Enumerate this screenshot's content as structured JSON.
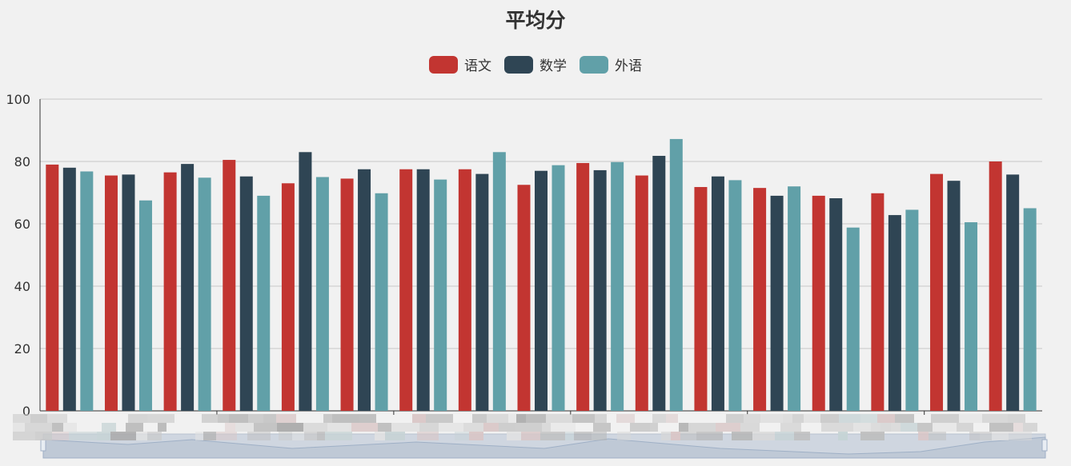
{
  "chart_data": {
    "type": "bar",
    "title": "平均分",
    "xlabel": "",
    "ylabel": "",
    "ylim": [
      0,
      100
    ],
    "yticks": [
      0,
      20,
      40,
      60,
      80,
      100
    ],
    "grid": true,
    "legend_position": "top-center",
    "colors": [
      "#c23531",
      "#2f4554",
      "#61a0a8"
    ],
    "series": [
      {
        "name": "语文",
        "values": [
          79,
          75.5,
          76.5,
          80.5,
          73,
          74.5,
          77.5,
          77.5,
          72.5,
          79.5,
          75.5,
          71.8,
          71.5,
          69,
          69.8,
          76,
          80
        ]
      },
      {
        "name": "数学",
        "values": [
          78,
          75.8,
          79.2,
          75.2,
          83,
          77.5,
          77.5,
          76,
          77,
          77.2,
          81.8,
          75.2,
          69,
          68.2,
          62.8,
          73.8,
          75.8
        ]
      },
      {
        "name": "外语",
        "values": [
          76.8,
          67.5,
          74.8,
          69,
          75,
          69.8,
          74.2,
          83,
          78.8,
          79.8,
          87.2,
          74,
          72,
          58.8,
          64.5,
          60.5,
          65
        ]
      }
    ]
  }
}
